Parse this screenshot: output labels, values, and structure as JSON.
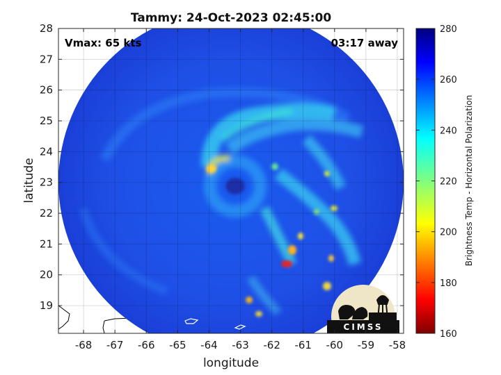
{
  "chart_data": {
    "type": "heatmap",
    "title": "Tammy: 24-Oct-2023 02:45:00",
    "xlabel": "longitude",
    "ylabel": "latitude",
    "xlim": [
      -68.8,
      -57.8
    ],
    "ylim": [
      18.1,
      28
    ],
    "x_ticks": [
      -68,
      -67,
      -66,
      -65,
      -64,
      -63,
      -62,
      -61,
      -60,
      -59,
      -58
    ],
    "y_ticks": [
      19,
      20,
      21,
      22,
      23,
      24,
      25,
      26,
      27,
      28
    ],
    "grid": true,
    "annotations": {
      "left": "Vmax: 65 kts",
      "right": "03:17 away"
    },
    "colorbar": {
      "label": "Brightness Temp - Horizontal Polarization",
      "range": [
        160,
        280
      ],
      "ticks": [
        160,
        180,
        200,
        220,
        240,
        260,
        280
      ],
      "colormap": "jet"
    },
    "swath": {
      "center_lon": -63.3,
      "center_lat": 23.0,
      "radius_deg": 5.5
    },
    "storm_center": {
      "lon": -63.8,
      "lat": 22.9
    },
    "logo_text": "CIMSS"
  },
  "colors": {
    "background": "#ffffff",
    "land_outline": "#000000",
    "swath_base": "#1f4fe8"
  }
}
